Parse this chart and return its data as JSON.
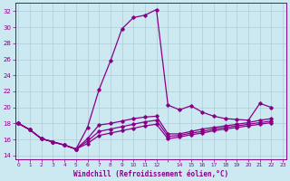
{
  "xlabel": "Windchill (Refroidissement éolien,°C)",
  "background_color": "#cce8f0",
  "grid_color": "#aaccdd",
  "line_color": "#880088",
  "yticks": [
    14,
    16,
    18,
    20,
    22,
    24,
    26,
    28,
    30,
    32
  ],
  "xtick_labels": [
    "0",
    "1",
    "2",
    "3",
    "4",
    "5",
    "6",
    "7",
    "8",
    "9",
    "10",
    "11",
    "12",
    "",
    "14",
    "15",
    "16",
    "17",
    "18",
    "19",
    "20",
    "21",
    "22",
    "23"
  ],
  "series": [
    [
      18.0,
      17.2,
      16.1,
      15.7,
      15.3,
      14.8,
      17.5,
      22.2,
      25.8,
      29.8,
      31.2,
      31.5,
      32.2,
      20.3,
      19.7,
      20.2,
      19.4,
      18.9,
      18.6,
      18.5,
      18.4,
      20.5,
      20.0
    ],
    [
      18.0,
      17.2,
      16.1,
      15.7,
      15.3,
      14.8,
      16.1,
      17.8,
      18.0,
      18.3,
      18.6,
      18.8,
      18.9,
      16.7,
      16.7,
      17.0,
      17.3,
      17.5,
      17.7,
      17.9,
      18.1,
      18.4,
      18.6
    ],
    [
      18.0,
      17.2,
      16.1,
      15.7,
      15.3,
      14.8,
      15.8,
      17.0,
      17.3,
      17.6,
      17.9,
      18.2,
      18.4,
      16.4,
      16.5,
      16.8,
      17.0,
      17.3,
      17.5,
      17.7,
      17.9,
      18.1,
      18.3
    ],
    [
      18.0,
      17.2,
      16.1,
      15.7,
      15.3,
      14.8,
      15.5,
      16.5,
      16.8,
      17.1,
      17.4,
      17.7,
      17.9,
      16.1,
      16.3,
      16.6,
      16.8,
      17.1,
      17.3,
      17.5,
      17.7,
      17.9,
      18.1
    ]
  ]
}
